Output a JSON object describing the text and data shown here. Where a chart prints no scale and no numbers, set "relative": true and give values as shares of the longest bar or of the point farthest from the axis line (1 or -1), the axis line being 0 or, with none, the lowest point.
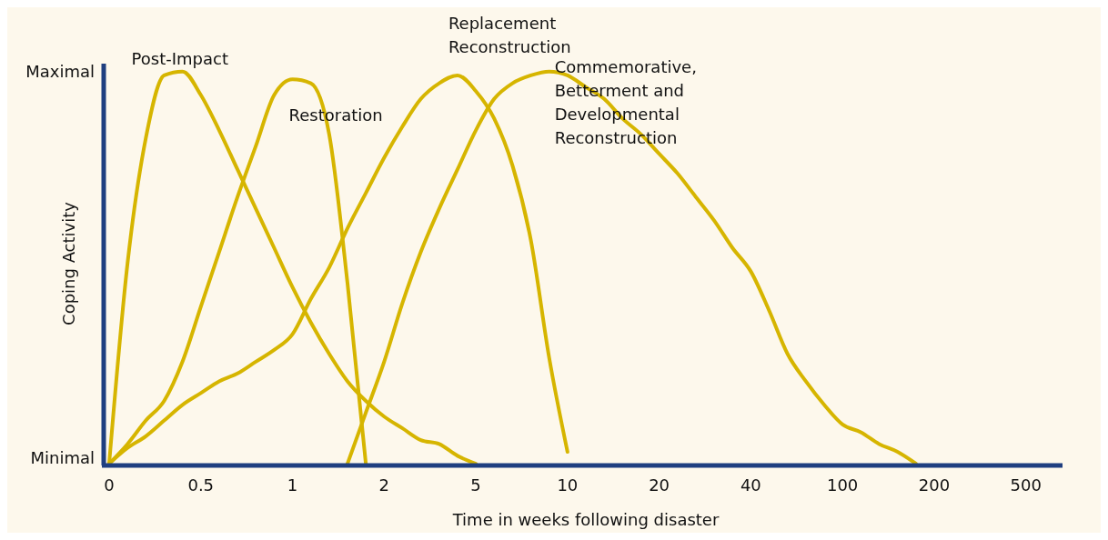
{
  "chart_data": {
    "type": "line",
    "xlabel": "Time in weeks following disaster",
    "ylabel": "Coping Activity",
    "annotations": [
      "Maximal",
      "Minimal"
    ],
    "relative": true,
    "categories": [
      "0",
      null,
      null,
      null,
      null,
      "0.5",
      null,
      null,
      null,
      null,
      "1",
      null,
      null,
      null,
      null,
      "2",
      null,
      null,
      null,
      null,
      "5",
      null,
      null,
      null,
      null,
      "10",
      null,
      null,
      null,
      null,
      "20",
      null,
      null,
      null,
      null,
      "40",
      null,
      null,
      null,
      null,
      "100",
      null,
      null,
      null,
      null,
      "200",
      null,
      null,
      null,
      null,
      "500",
      null,
      null
    ],
    "grid": false,
    "marker": "none",
    "line_style": "solid",
    "series": [
      {
        "name": "Post-Impact",
        "color": "#d6b500",
        "values": [
          0,
          0.51,
          0.83,
          0.99,
          1,
          0.94,
          0.85,
          0.75,
          0.65,
          0.55,
          0.45,
          0.36,
          0.28,
          0.21,
          0.16,
          0.12,
          0.09,
          0.06,
          0.05,
          0.02,
          0,
          null,
          null,
          null,
          null,
          null,
          null,
          null,
          null,
          null,
          null,
          null,
          null,
          null,
          null,
          null,
          null,
          null,
          null,
          null,
          null,
          null,
          null,
          null,
          null,
          null,
          null,
          null,
          null,
          null,
          null,
          null,
          null
        ]
      },
      {
        "name": "Restoration",
        "color": "#d6b500",
        "values": [
          0,
          0.05,
          0.11,
          0.16,
          0.26,
          0.4,
          0.54,
          0.68,
          0.81,
          0.94,
          0.98,
          0.97,
          0.84,
          0.46,
          0,
          null,
          null,
          null,
          null,
          null,
          null,
          null,
          null,
          null,
          null,
          null,
          null,
          null,
          null,
          null,
          null,
          null,
          null,
          null,
          null,
          null,
          null,
          null,
          null,
          null,
          null,
          null,
          null,
          null,
          null,
          null,
          null,
          null,
          null,
          null,
          null,
          null,
          null
        ]
      },
      {
        "name": "Replacement Reconstruction",
        "color": "#d6b500",
        "values": [
          0,
          0.04,
          0.07,
          0.11,
          0.15,
          0.18,
          0.21,
          0.23,
          0.26,
          0.29,
          0.33,
          0.42,
          0.5,
          0.6,
          0.69,
          0.78,
          0.86,
          0.93,
          0.97,
          0.99,
          0.95,
          0.88,
          0.76,
          0.57,
          0.27,
          0.03,
          null,
          null,
          null,
          null,
          null,
          null,
          null,
          null,
          null,
          null,
          null,
          null,
          null,
          null,
          null,
          null,
          null,
          null,
          null,
          null,
          null,
          null,
          null,
          null,
          null,
          null,
          null
        ]
      },
      {
        "name": "Commemorative, Betterment and Developmental Reconstruction",
        "color": "#d6b500",
        "values": [
          null,
          null,
          null,
          null,
          null,
          null,
          null,
          null,
          null,
          null,
          null,
          null,
          null,
          0,
          0.13,
          0.26,
          0.41,
          0.54,
          0.65,
          0.75,
          0.85,
          0.93,
          0.97,
          0.99,
          1,
          0.99,
          0.96,
          0.93,
          0.88,
          0.84,
          0.79,
          0.74,
          0.68,
          0.62,
          0.55,
          0.49,
          0.39,
          0.28,
          0.21,
          0.15,
          0.1,
          0.08,
          0.05,
          0.03,
          0,
          null,
          null,
          null,
          null,
          null,
          null,
          null,
          null
        ]
      }
    ]
  }
}
